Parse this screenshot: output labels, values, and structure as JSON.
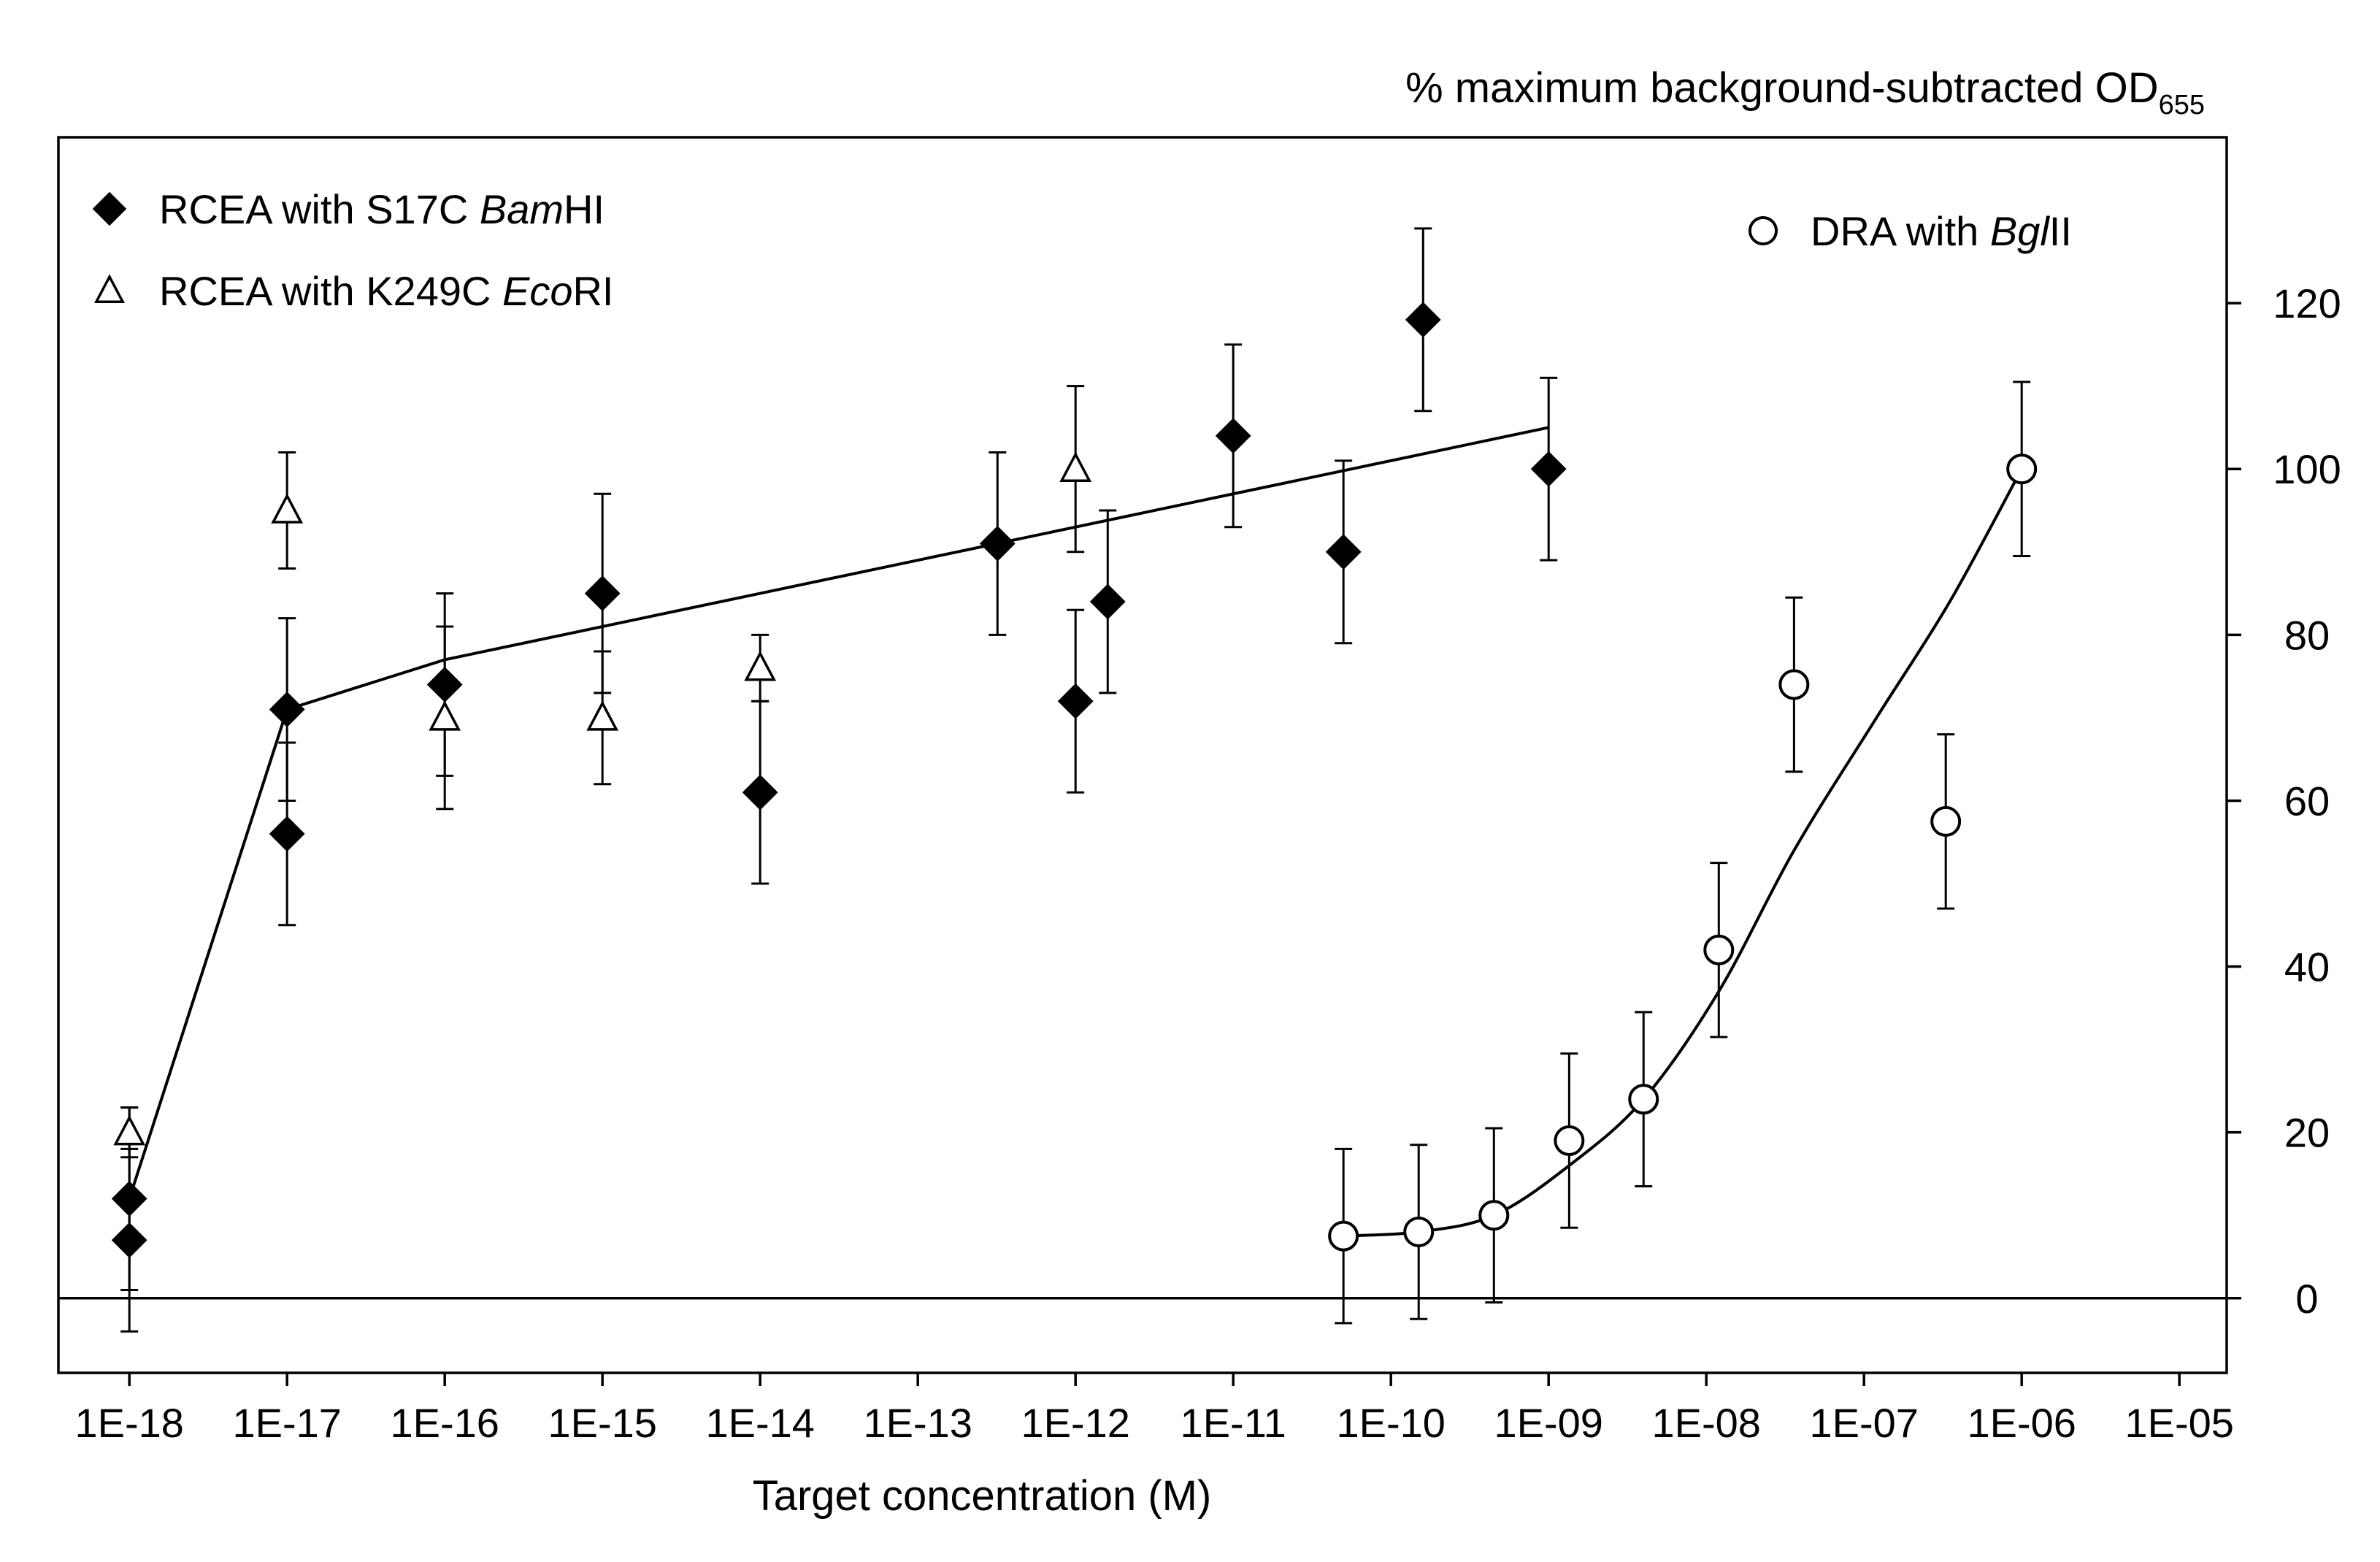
{
  "chart_data": {
    "type": "scatter",
    "title": "",
    "xlabel": "Target concentration (M)",
    "ylabel_main": "% maximum background-subtracted OD",
    "ylabel_sub": "655",
    "x_scale": "log",
    "x_ticks": [
      "1E-18",
      "1E-17",
      "1E-16",
      "1E-15",
      "1E-14",
      "1E-13",
      "1E-12",
      "1E-11",
      "1E-10",
      "1E-09",
      "1E-08",
      "1E-07",
      "1E-06",
      "1E-05"
    ],
    "x_tick_exponents": [
      -18,
      -17,
      -16,
      -15,
      -14,
      -13,
      -12,
      -11,
      -10,
      -9,
      -8,
      -7,
      -6,
      -5
    ],
    "xlim_exponent": [
      -18.45,
      -4.7
    ],
    "y_ticks": [
      0,
      20,
      40,
      60,
      80,
      100,
      120
    ],
    "ylim": [
      -9,
      140
    ],
    "y_axis_side": "right",
    "zero_line": true,
    "grid": false,
    "legend": [
      {
        "marker": "diamond-filled",
        "prefix": "RCEA with S17C ",
        "italic": "Bam",
        "suffix": "HI",
        "placement": "top-left"
      },
      {
        "marker": "triangle-open",
        "prefix": "RCEA with K249C ",
        "italic": "Eco",
        "suffix": "RI",
        "placement": "top-left"
      },
      {
        "marker": "circle-open",
        "prefix": "DRA with ",
        "italic": "Bgl",
        "suffix": "II",
        "placement": "top-right"
      }
    ],
    "series": [
      {
        "name": "RCEA with S17C BamHI",
        "marker": "diamond-filled",
        "points": [
          {
            "x": 1e-18,
            "y": 12,
            "err": 11
          },
          {
            "x": 1e-18,
            "y": 7,
            "err": 11
          },
          {
            "x": 1e-17,
            "y": 71,
            "err": 11
          },
          {
            "x": 1e-17,
            "y": 56,
            "err": 11
          },
          {
            "x": 1e-16,
            "y": 74,
            "err": 11
          },
          {
            "x": 1e-15,
            "y": 85,
            "err": 12
          },
          {
            "x": 1e-14,
            "y": 61,
            "err": 11
          },
          {
            "x": 3.2e-13,
            "y": 91,
            "err": 11
          },
          {
            "x": 1e-12,
            "y": 72,
            "err": 11
          },
          {
            "x": 1.6e-12,
            "y": 84,
            "err": 11
          },
          {
            "x": 1e-11,
            "y": 104,
            "err": 11
          },
          {
            "x": 5e-11,
            "y": 90,
            "err": 11
          },
          {
            "x": 1.6e-10,
            "y": 118,
            "err": 11
          },
          {
            "x": 1e-09,
            "y": 100,
            "err": 11
          }
        ]
      },
      {
        "name": "RCEA with K249C EcoRI",
        "marker": "triangle-open",
        "points": [
          {
            "x": 1e-18,
            "y": 20,
            "err": 3
          },
          {
            "x": 1e-17,
            "y": 95,
            "err": 7
          },
          {
            "x": 1e-16,
            "y": 70,
            "err": 11
          },
          {
            "x": 1e-15,
            "y": 70,
            "err": 8
          },
          {
            "x": 1e-14,
            "y": 76,
            "err": 4
          },
          {
            "x": 1e-12,
            "y": 100,
            "err": 10
          }
        ]
      },
      {
        "name": "DRA with BglII",
        "marker": "circle-open",
        "points": [
          {
            "x": 5e-11,
            "y": 7.5,
            "err": 10.5
          },
          {
            "x": 1.5e-10,
            "y": 8,
            "err": 10.5
          },
          {
            "x": 4.5e-10,
            "y": 10,
            "err": 10.5
          },
          {
            "x": 1.35e-09,
            "y": 19,
            "err": 10.5
          },
          {
            "x": 4e-09,
            "y": 24,
            "err": 10.5
          },
          {
            "x": 1.2e-08,
            "y": 42,
            "err": 10.5
          },
          {
            "x": 3.6e-08,
            "y": 74,
            "err": 10.5
          },
          {
            "x": 3.3e-07,
            "y": 57.5,
            "err": 10.5
          },
          {
            "x": 1e-06,
            "y": 100,
            "err": 10.5
          }
        ]
      }
    ],
    "fit_lines": [
      {
        "series": "RCEA with S17C BamHI",
        "style": "polyline",
        "points": [
          [
            1e-18,
            12
          ],
          [
            1e-17,
            71
          ],
          [
            1e-16,
            77
          ],
          [
            1e-09,
            105
          ]
        ]
      },
      {
        "series": "DRA with BglII",
        "style": "smooth",
        "points": [
          [
            5e-11,
            7.5
          ],
          [
            1.5e-10,
            8
          ],
          [
            4.5e-10,
            10
          ],
          [
            1.35e-09,
            16
          ],
          [
            4e-09,
            24
          ],
          [
            1.2e-08,
            37
          ],
          [
            3.6e-08,
            54
          ],
          [
            1.2e-07,
            70
          ],
          [
            3.5e-07,
            84
          ],
          [
            1e-06,
            100
          ]
        ]
      }
    ]
  }
}
